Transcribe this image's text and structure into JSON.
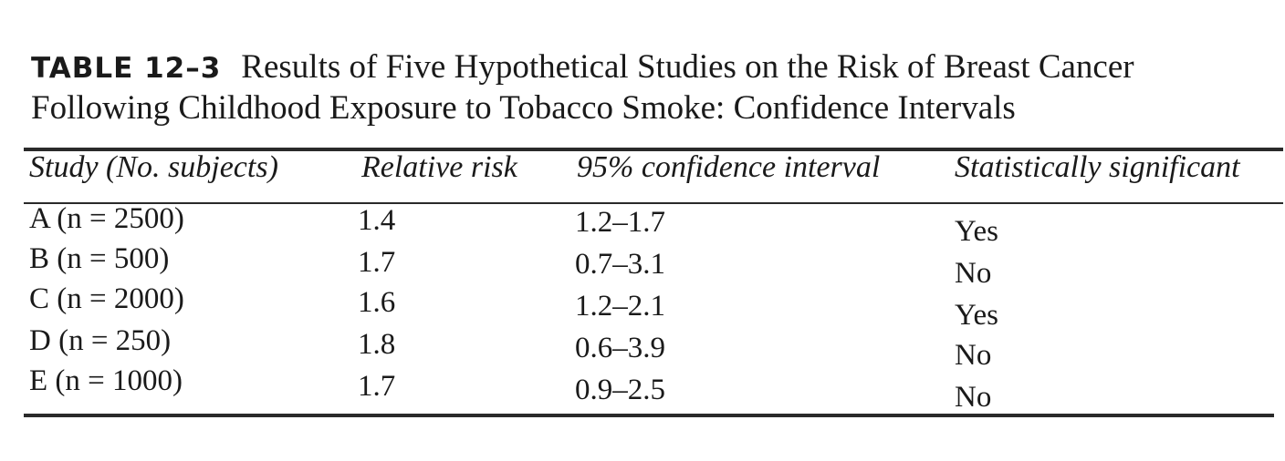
{
  "table": {
    "label": "TABLE 12–3",
    "title": "Results of Five Hypothetical Studies on the Risk of Breast Cancer Following Childhood Exposure to Tobacco Smoke: Confidence Intervals",
    "headers": [
      "Study (No. subjects)",
      "Relative risk",
      "95% confidence interval",
      "Statistically significant"
    ],
    "rows": [
      [
        "A (n = 2500)",
        "1.4",
        "1.2–1.7",
        "Yes"
      ],
      [
        "B (n = 500)",
        "1.7",
        "0.7–3.1",
        "No"
      ],
      [
        "C (n = 2000)",
        "1.6",
        "1.2–2.1",
        "Yes"
      ],
      [
        "D (n = 250)",
        "1.8",
        "0.6–3.9",
        "No"
      ],
      [
        "E (n = 1000)",
        "1.7",
        "0.9–2.5",
        "No"
      ]
    ]
  }
}
